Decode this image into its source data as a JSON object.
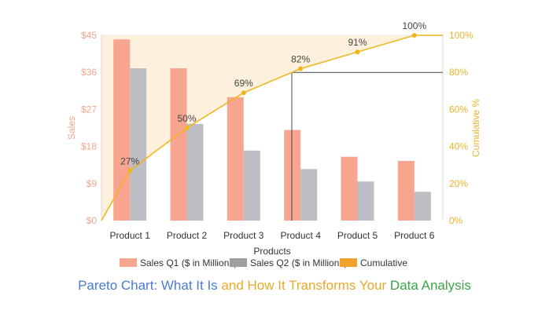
{
  "chart_data": {
    "type": "bar",
    "categories": [
      "Product 1",
      "Product 2",
      "Product 3",
      "Product 4",
      "Product 5",
      "Product 6"
    ],
    "series": [
      {
        "name": "Sales Q1 ($ in Millions)",
        "type": "bar",
        "color": "#f7a58f",
        "values": [
          44,
          37,
          30,
          22,
          15.5,
          14.5
        ]
      },
      {
        "name": "Sales Q2 ($ in Millions)",
        "type": "bar",
        "color": "#bcbec3",
        "values": [
          37,
          23.5,
          17,
          12.5,
          9.5,
          7
        ]
      },
      {
        "name": "Cumulative",
        "type": "line",
        "axis": "right",
        "color": "#f2b418",
        "values": [
          27,
          50,
          69,
          82,
          91,
          100
        ],
        "labels": [
          "27%",
          "50%",
          "69%",
          "82%",
          "91%",
          "100%"
        ]
      }
    ],
    "xlabel": "Products",
    "ylabel": "Sales",
    "y2label": "Cumulative %",
    "ylim": [
      0,
      45
    ],
    "y2lim": [
      0,
      100
    ],
    "yticks": [
      "$0",
      "$9",
      "$18",
      "$27",
      "$36",
      "$45"
    ],
    "y2ticks": [
      "0%",
      "20%",
      "40%",
      "60%",
      "80%",
      "100%"
    ],
    "legend": "bottom",
    "reference_value_percent": 80,
    "colors": {
      "left_axis": "#f3a58e",
      "right_axis": "#eab32a",
      "shade": "#fdf0dc",
      "ref_line": "#444444"
    }
  },
  "caption": {
    "part1": "Pareto Chart: What It Is",
    "part2": " and How It Transforms Your",
    "part3": " Data Analysis",
    "colors": [
      "#4a7bd0",
      "#e8a92a",
      "#3ea24a"
    ]
  }
}
